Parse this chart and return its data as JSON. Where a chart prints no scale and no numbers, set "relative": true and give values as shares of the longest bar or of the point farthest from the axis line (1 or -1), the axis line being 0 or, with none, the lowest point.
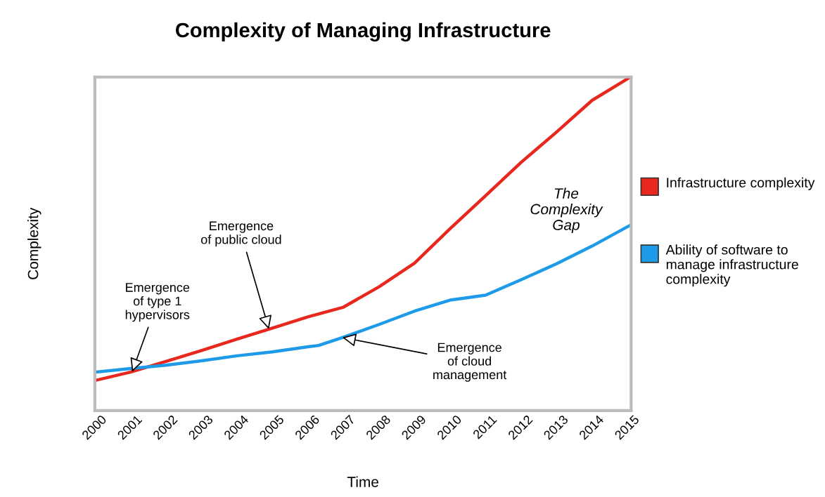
{
  "chart_data": {
    "type": "line",
    "title": "Complexity of Managing Infrastructure",
    "xlabel": "Time",
    "ylabel": "Complexity",
    "relative": true,
    "tick_labels": "x",
    "xlim": [
      2000,
      2015.1
    ],
    "xticks": [
      2000,
      2001,
      2002,
      2003,
      2004,
      2005,
      2006,
      2007,
      2008,
      2009,
      2010,
      2011,
      2012,
      2013,
      2014,
      2015
    ],
    "legend": "right",
    "grid": false,
    "series": [
      {
        "name": "Infrastructure complexity",
        "color": "#e8281e",
        "x": [
          2000,
          2001,
          2002,
          2003,
          2004,
          2005,
          2006,
          2007,
          2008,
          2009,
          2010,
          2011,
          2012,
          2013,
          2014,
          2015.08
        ],
        "values": [
          0.09,
          0.115,
          0.147,
          0.18,
          0.214,
          0.247,
          0.281,
          0.31,
          0.371,
          0.442,
          0.545,
          0.644,
          0.744,
          0.835,
          0.93,
          1.0
        ]
      },
      {
        "name": "Ability of software to manage infrastructure complexity",
        "color": "#1e9be8",
        "x": [
          2000,
          2001,
          2002,
          2003,
          2004,
          2005,
          2006,
          2006.3,
          2007,
          2008,
          2009,
          2010,
          2011,
          2012,
          2013,
          2014,
          2015.08
        ],
        "values": [
          0.115,
          0.126,
          0.136,
          0.149,
          0.164,
          0.176,
          0.191,
          0.195,
          0.22,
          0.258,
          0.298,
          0.331,
          0.346,
          0.392,
          0.44,
          0.493,
          0.556
        ]
      }
    ],
    "annotations": [
      {
        "text": "Emergence\nof type 1\nhypervisors",
        "x": 2001.05,
        "y": 0.116
      },
      {
        "text": "Emergence\nof public cloud",
        "x": 2004.9,
        "y": 0.244
      },
      {
        "text": "Emergence\nof cloud\nmanagement",
        "x": 2006.97,
        "y": 0.219
      },
      "The\nComplexity\nGap"
    ]
  }
}
